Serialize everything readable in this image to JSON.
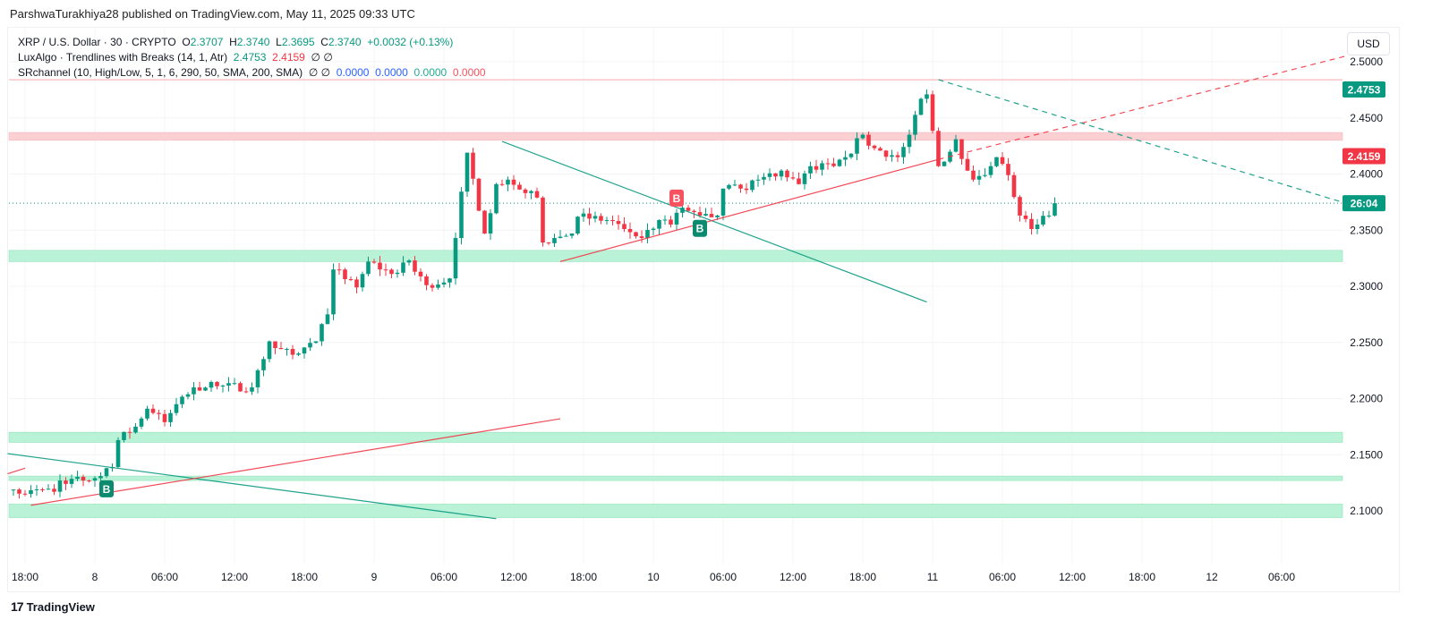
{
  "banner": "ParshwaTurakhiya28 published on TradingView.com, May 11, 2025 09:33 UTC",
  "legend": {
    "symbol": "XRP / U.S. Dollar · 30 · CRYPTO",
    "o_label": "O",
    "o": "2.3707",
    "h_label": "H",
    "h": "2.3740",
    "l_label": "L",
    "l": "2.3695",
    "c_label": "C",
    "c": "2.3740",
    "change": "+0.0032 (+0.13%)",
    "ind1_name": "LuxAlgo · Trendlines with Breaks (14, 1, Atr)",
    "ind1_v1": "2.4753",
    "ind1_v2": "2.4159",
    "ind1_na": "∅ ∅",
    "ind2_name": "SRchannel (10, High/Low, 5, 1, 6, 290, 50, SMA, 200, SMA)",
    "ind2_na": "∅ ∅",
    "ind2_v1": "0.0000",
    "ind2_v2": "0.0000",
    "ind2_v3": "0.0000",
    "ind2_v4": "0.0000"
  },
  "currency": "USD",
  "logo_text": "TradingView",
  "colors": {
    "up": "#089981",
    "down": "#f23645",
    "support_zone": "#b9f2d6",
    "resistance_zone": "#fbd0d3",
    "trend_up": "#f23645",
    "trend_down": "#089981"
  },
  "chart_data": {
    "type": "candlestick",
    "symbol": "XRP/USD",
    "interval": "30",
    "ylim": [
      2.08,
      2.52
    ],
    "y_ticks": [
      "2.5000",
      "2.4500",
      "2.4000",
      "2.3500",
      "2.3000",
      "2.2500",
      "2.2000",
      "2.1500",
      "2.1000"
    ],
    "x_ticks": [
      "18:00",
      "8",
      "06:00",
      "12:00",
      "18:00",
      "9",
      "06:00",
      "12:00",
      "18:00",
      "10",
      "06:00",
      "12:00",
      "18:00",
      "11",
      "06:00",
      "12:00",
      "18:00",
      "12",
      "06:00"
    ],
    "price_labels": [
      {
        "text": "2.4753",
        "value": 2.4753,
        "color": "#089981"
      },
      {
        "text": "2.4159",
        "value": 2.4159,
        "color": "#f23645"
      },
      {
        "text": "26:04",
        "value": 2.374,
        "color": "#089981"
      }
    ],
    "close_path": [
      [
        "05-07 17:00",
        2.119
      ],
      [
        "05-07 18:00",
        2.115
      ],
      [
        "05-07 19:30",
        2.119
      ],
      [
        "05-07 20:30",
        2.117
      ],
      [
        "05-07 21:00",
        2.127
      ],
      [
        "05-07 23:00",
        2.127
      ],
      [
        "05-08 00:30",
        2.131
      ],
      [
        "05-08 01:30",
        2.139
      ],
      [
        "05-08 02:00",
        2.163
      ],
      [
        "05-08 03:30",
        2.175
      ],
      [
        "05-08 04:30",
        2.191
      ],
      [
        "05-08 06:00",
        2.179
      ],
      [
        "05-08 07:00",
        2.195
      ],
      [
        "05-08 08:30",
        2.21
      ],
      [
        "05-08 10:30",
        2.211
      ],
      [
        "05-08 13:30",
        2.21
      ],
      [
        "05-08 15:00",
        2.251
      ],
      [
        "05-08 15:30",
        2.245
      ],
      [
        "05-08 17:00",
        2.239
      ],
      [
        "05-08 19:00",
        2.251
      ],
      [
        "05-08 20:00",
        2.275
      ],
      [
        "05-08 20:30",
        2.315
      ],
      [
        "05-08 22:30",
        2.299
      ],
      [
        "05-08 23:30",
        2.322
      ],
      [
        "05-09 01:30",
        2.311
      ],
      [
        "05-09 03:00",
        2.323
      ],
      [
        "05-09 04:30",
        2.301
      ],
      [
        "05-09 06:30",
        2.307
      ],
      [
        "05-09 07:00",
        2.343
      ],
      [
        "05-09 08:00",
        2.419
      ],
      [
        "05-09 09:30",
        2.347
      ],
      [
        "05-09 10:30",
        2.391
      ],
      [
        "05-09 11:30",
        2.395
      ],
      [
        "05-09 13:00",
        2.383
      ],
      [
        "05-09 14:00",
        2.379
      ],
      [
        "05-09 14:30",
        2.339
      ],
      [
        "05-09 15:30",
        2.343
      ],
      [
        "05-09 17:00",
        2.347
      ],
      [
        "05-09 17:30",
        2.362
      ],
      [
        "05-09 20:00",
        2.359
      ],
      [
        "05-09 21:30",
        2.351
      ],
      [
        "05-09 23:00",
        2.343
      ],
      [
        "05-10 00:30",
        2.359
      ],
      [
        "05-10 01:30",
        2.355
      ],
      [
        "05-10 02:30",
        2.37
      ],
      [
        "05-10 04:00",
        2.363
      ],
      [
        "05-10 05:30",
        2.363
      ],
      [
        "05-10 06:00",
        2.387
      ],
      [
        "05-10 07:30",
        2.387
      ],
      [
        "05-10 09:00",
        2.395
      ],
      [
        "05-10 11:00",
        2.403
      ],
      [
        "05-10 12:30",
        2.391
      ],
      [
        "05-10 13:30",
        2.407
      ],
      [
        "05-10 15:30",
        2.407
      ],
      [
        "05-10 16:30",
        2.415
      ],
      [
        "05-10 18:00",
        2.435
      ],
      [
        "05-10 19:00",
        2.423
      ],
      [
        "05-10 21:00",
        2.415
      ],
      [
        "05-10 22:00",
        2.435
      ],
      [
        "05-10 23:00",
        2.467
      ],
      [
        "05-10 23:30",
        2.471
      ],
      [
        "05-11 00:30",
        2.407
      ],
      [
        "05-11 01:00",
        2.411
      ],
      [
        "05-11 02:00",
        2.431
      ],
      [
        "05-11 03:00",
        2.403
      ],
      [
        "05-11 03:30",
        2.395
      ],
      [
        "05-11 05:00",
        2.407
      ],
      [
        "05-11 05:30",
        2.415
      ],
      [
        "05-11 06:30",
        2.399
      ],
      [
        "05-11 07:30",
        2.363
      ],
      [
        "05-11 08:30",
        2.351
      ],
      [
        "05-11 09:00",
        2.355
      ],
      [
        "05-11 10:00",
        2.363
      ],
      [
        "05-11 10:30",
        2.374
      ]
    ],
    "zones": [
      {
        "kind": "resistance",
        "from": 2.43,
        "to": 2.437
      },
      {
        "kind": "support",
        "from": 2.322,
        "to": 2.332
      },
      {
        "kind": "support",
        "from": 2.161,
        "to": 2.17
      },
      {
        "kind": "support",
        "from": 2.127,
        "to": 2.131
      },
      {
        "kind": "support",
        "from": 2.094,
        "to": 2.106
      }
    ],
    "levels": [
      {
        "value": 2.484,
        "color": "#f7a8ae"
      }
    ],
    "current_price": 2.374,
    "trendlines": [
      {
        "color": "#089981",
        "dash": false,
        "from": [
          "05-09 11:00",
          2.429
        ],
        "to": [
          "05-10 23:30",
          2.286
        ]
      },
      {
        "color": "#f23645",
        "dash": false,
        "from": [
          "05-09 16:00",
          2.322
        ],
        "to": [
          "05-11 00:30",
          2.413
        ]
      },
      {
        "color": "#f23645",
        "dash": true,
        "from": [
          "05-11 00:30",
          2.413
        ],
        "to": [
          "05-12 11:30",
          2.505
        ]
      },
      {
        "color": "#089981",
        "dash": true,
        "from": [
          "05-11 00:30",
          2.484
        ],
        "to": [
          "05-12 11:30",
          2.374
        ]
      },
      {
        "color": "#089981",
        "dash": false,
        "from": [
          "05-07 16:30",
          2.151
        ],
        "to": [
          "05-09 10:30",
          2.093
        ]
      },
      {
        "color": "#f23645",
        "dash": false,
        "from": [
          "05-07 18:30",
          2.105
        ],
        "to": [
          "05-09 16:00",
          2.182
        ]
      },
      {
        "color": "#f23645",
        "dash": false,
        "from": [
          "05-07 16:30",
          2.133
        ],
        "to": [
          "05-07 18:00",
          2.138
        ]
      }
    ],
    "signals": [
      {
        "label": "B",
        "kind": "bearish-break",
        "time": "05-10 02:00",
        "price": 2.379
      },
      {
        "label": "B",
        "kind": "bullish-break",
        "time": "05-10 04:00",
        "price": 2.352
      },
      {
        "label": "B",
        "kind": "bullish-break",
        "time": "05-08 01:00",
        "price": 2.12
      }
    ]
  }
}
